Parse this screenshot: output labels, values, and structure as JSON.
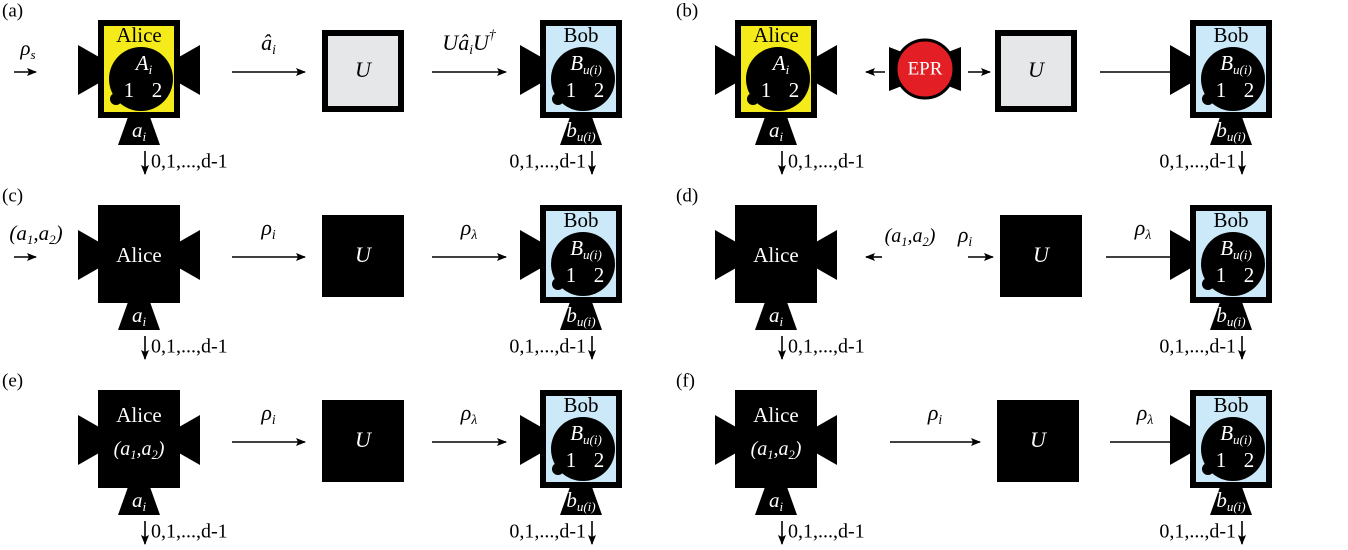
{
  "panels": [
    {
      "label": "(a)",
      "input": [
        {
          "t": "ρ",
          "sub": "s"
        }
      ],
      "alice": {
        "name": "Alice",
        "observable": [
          {
            "t": "A",
            "sub": "i"
          }
        ],
        "dial": [
          "1",
          "2"
        ]
      },
      "alice_output": [
        {
          "t": "a",
          "sub": "i"
        }
      ],
      "alice_outcomes": "0,1,...,d-1",
      "channel_1": [
        {
          "t": "â",
          "sub": "i"
        }
      ],
      "unitary": "U",
      "channel_2": [
        {
          "t": "U"
        },
        {
          "t": "â",
          "sub": "i"
        },
        {
          "t": "U",
          "sup": "†"
        }
      ],
      "bob": {
        "name": "Bob",
        "observable": [
          {
            "t": "B",
            "sub": "u(i)"
          }
        ],
        "dial": [
          "1",
          "2"
        ]
      },
      "bob_output": [
        {
          "t": "b",
          "sub": "u(i)"
        }
      ],
      "bob_outcomes": "0,1,...,d-1"
    },
    {
      "label": "(b)",
      "alice": {
        "name": "Alice",
        "observable": [
          {
            "t": "A",
            "sub": "i"
          }
        ],
        "dial": [
          "1",
          "2"
        ]
      },
      "alice_output": [
        {
          "t": "a",
          "sub": "i"
        }
      ],
      "alice_outcomes": "0,1,...,d-1",
      "source": "EPR",
      "unitary": "U",
      "bob": {
        "name": "Bob",
        "observable": [
          {
            "t": "B",
            "sub": "u(i)"
          }
        ],
        "dial": [
          "1",
          "2"
        ]
      },
      "bob_output": [
        {
          "t": "b",
          "sub": "u(i)"
        }
      ],
      "bob_outcomes": "0,1,...,d-1"
    },
    {
      "label": "(c)",
      "input": [
        {
          "t": "(a",
          "sub": "1"
        },
        {
          "t": ",a",
          "sub": "2"
        },
        {
          "t": ")"
        }
      ],
      "alice": {
        "name": "Alice"
      },
      "alice_output": [
        {
          "t": "a",
          "sub": "i"
        }
      ],
      "alice_outcomes": "0,1,...,d-1",
      "channel_1": [
        {
          "t": "ρ",
          "sub": "i"
        }
      ],
      "unitary": "U",
      "channel_2": [
        {
          "t": "ρ",
          "sub": "λ"
        }
      ],
      "bob": {
        "name": "Bob",
        "observable": [
          {
            "t": "B",
            "sub": "u(i)"
          }
        ],
        "dial": [
          "1",
          "2"
        ]
      },
      "bob_output": [
        {
          "t": "b",
          "sub": "u(i)"
        }
      ],
      "bob_outcomes": "0,1,...,d-1"
    },
    {
      "label": "(d)",
      "alice": {
        "name": "Alice"
      },
      "setting": [
        {
          "t": "(a",
          "sub": "1"
        },
        {
          "t": ",a",
          "sub": "2"
        },
        {
          "t": ")"
        }
      ],
      "alice_output": [
        {
          "t": "a",
          "sub": "i"
        }
      ],
      "alice_outcomes": "0,1,...,d-1",
      "channel_1": [
        {
          "t": "ρ",
          "sub": "i"
        }
      ],
      "unitary": "U",
      "channel_2": [
        {
          "t": "ρ",
          "sub": "λ"
        }
      ],
      "bob": {
        "name": "Bob",
        "observable": [
          {
            "t": "B",
            "sub": "u(i)"
          }
        ],
        "dial": [
          "1",
          "2"
        ]
      },
      "bob_output": [
        {
          "t": "b",
          "sub": "u(i)"
        }
      ],
      "bob_outcomes": "0,1,...,d-1"
    },
    {
      "label": "(e)",
      "alice": {
        "name": "Alice",
        "setting": [
          {
            "t": "(a",
            "sub": "1"
          },
          {
            "t": ",a",
            "sub": "2"
          },
          {
            "t": ")"
          }
        ]
      },
      "alice_output": [
        {
          "t": "a",
          "sub": "i"
        }
      ],
      "alice_outcomes": "0,1,...,d-1",
      "channel_1": [
        {
          "t": "ρ",
          "sub": "i"
        }
      ],
      "unitary": "U",
      "channel_2": [
        {
          "t": "ρ",
          "sub": "λ"
        }
      ],
      "bob": {
        "name": "Bob",
        "observable": [
          {
            "t": "B",
            "sub": "u(i)"
          }
        ],
        "dial": [
          "1",
          "2"
        ]
      },
      "bob_output": [
        {
          "t": "b",
          "sub": "u(i)"
        }
      ],
      "bob_outcomes": "0,1,...,d-1"
    },
    {
      "label": "(f)",
      "alice": {
        "name": "Alice",
        "setting": [
          {
            "t": "(a",
            "sub": "1"
          },
          {
            "t": ",a",
            "sub": "2"
          },
          {
            "t": ")"
          }
        ]
      },
      "alice_output": [
        {
          "t": "a",
          "sub": "i"
        }
      ],
      "alice_outcomes": "0,1,...,d-1",
      "channel_1": [
        {
          "t": "ρ",
          "sub": "i"
        }
      ],
      "unitary": "U",
      "channel_2": [
        {
          "t": "ρ",
          "sub": "λ"
        }
      ],
      "bob": {
        "name": "Bob",
        "observable": [
          {
            "t": "B",
            "sub": "u(i)"
          }
        ],
        "dial": [
          "1",
          "2"
        ]
      },
      "bob_output": [
        {
          "t": "b",
          "sub": "u(i)"
        }
      ],
      "bob_outcomes": "0,1,...,d-1"
    }
  ]
}
